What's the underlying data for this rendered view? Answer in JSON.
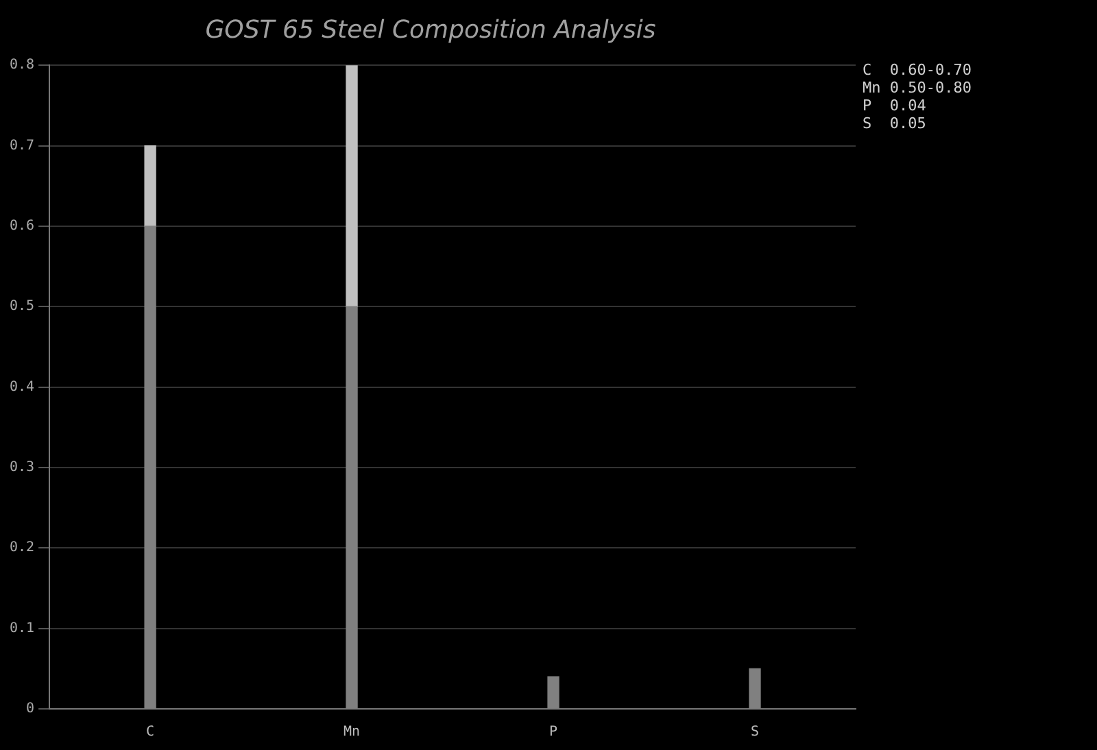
{
  "chart_data": {
    "type": "bar",
    "title": "GOST 65 Steel Composition Analysis",
    "categories": [
      "C",
      "Mn",
      "P",
      "S"
    ],
    "stacked": true,
    "series": [
      {
        "color": "#808080",
        "values": [
          0.6,
          0.5,
          0.04,
          0.05
        ]
      },
      {
        "color": "#c0c0c0",
        "values": [
          0.1,
          0.3,
          null,
          null
        ]
      }
    ],
    "ylim": [
      0,
      0.8
    ],
    "yticks": [
      0,
      0.1,
      0.2,
      0.3,
      0.4,
      0.5,
      0.6,
      0.7,
      0.8
    ],
    "grid": "y",
    "annotations": [
      "C  0.60-0.70",
      "Mn 0.50-0.80",
      "P  0.04",
      "S  0.05"
    ]
  }
}
